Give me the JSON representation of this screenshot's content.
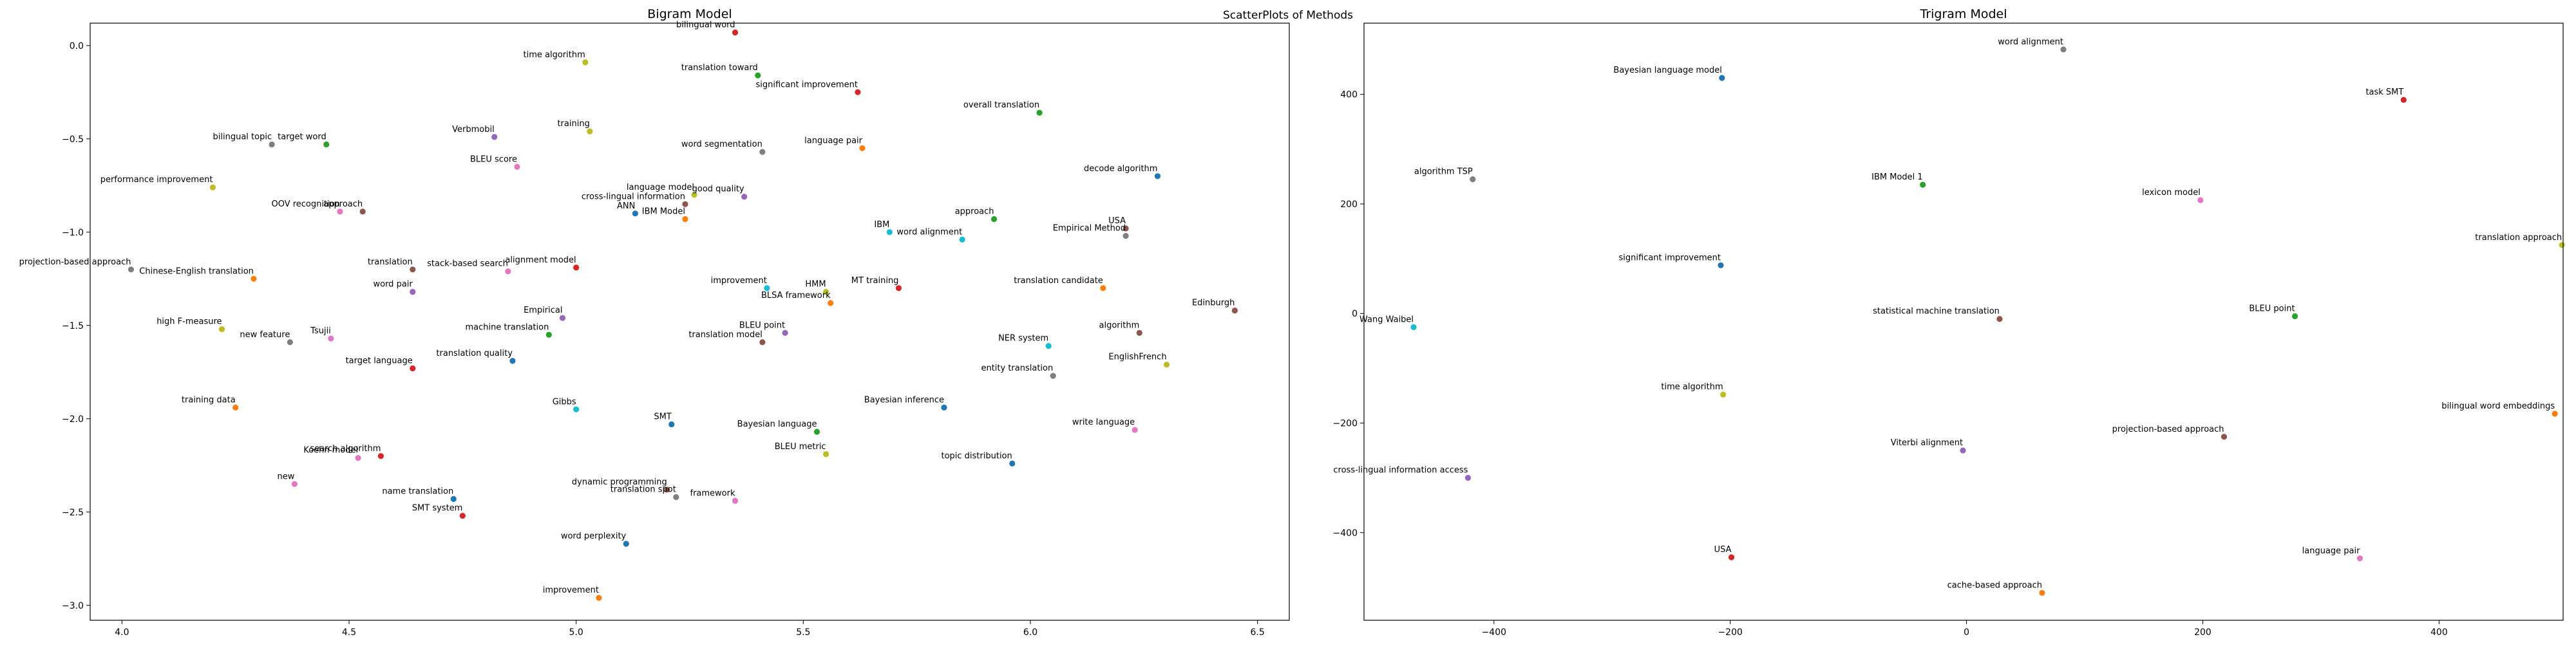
{
  "figure": {
    "suptitle": "ScatterPlots of Methods"
  },
  "chart_data": [
    {
      "type": "scatter",
      "title": "Bigram Model",
      "xlim": [
        3.93,
        6.57
      ],
      "ylim": [
        -3.08,
        0.12
      ],
      "xticks": [
        4.0,
        4.5,
        5.0,
        5.5,
        6.0,
        6.5
      ],
      "yticks": [
        0.0,
        -0.5,
        -1.0,
        -1.5,
        -2.0,
        -2.5,
        -3.0
      ],
      "xtick_labels": [
        "4.0",
        "4.5",
        "5.0",
        "5.5",
        "6.0",
        "6.5"
      ],
      "ytick_labels": [
        "0.0",
        "−0.5",
        "−1.0",
        "−1.5",
        "−2.0",
        "−2.5",
        "−3.0"
      ],
      "grid": false,
      "points": [
        {
          "label": "bilingual word",
          "x": 5.35,
          "y": 0.07,
          "color": "#d62728"
        },
        {
          "label": "time algorithm",
          "x": 5.02,
          "y": -0.09,
          "color": "#bcbd22"
        },
        {
          "label": "translation toward",
          "x": 5.4,
          "y": -0.16,
          "color": "#2ca02c"
        },
        {
          "label": "significant improvement",
          "x": 5.62,
          "y": -0.25,
          "color": "#d62728"
        },
        {
          "label": "overall translation",
          "x": 6.02,
          "y": -0.36,
          "color": "#2ca02c"
        },
        {
          "label": "training",
          "x": 5.03,
          "y": -0.46,
          "color": "#bcbd22"
        },
        {
          "label": "Verbmobil",
          "x": 4.82,
          "y": -0.49,
          "color": "#9467bd"
        },
        {
          "label": "bilingual topic",
          "x": 4.33,
          "y": -0.53,
          "color": "#7f7f7f"
        },
        {
          "label": "target word",
          "x": 4.45,
          "y": -0.53,
          "color": "#2ca02c"
        },
        {
          "label": "word segmentation",
          "x": 5.41,
          "y": -0.57,
          "color": "#7f7f7f"
        },
        {
          "label": "language pair",
          "x": 5.63,
          "y": -0.55,
          "color": "#ff7f0e"
        },
        {
          "label": "BLEU score",
          "x": 4.87,
          "y": -0.65,
          "color": "#e377c2"
        },
        {
          "label": "decode algorithm",
          "x": 6.28,
          "y": -0.7,
          "color": "#1f77b4"
        },
        {
          "label": "performance improvement",
          "x": 4.2,
          "y": -0.76,
          "color": "#bcbd22"
        },
        {
          "label": "language model",
          "x": 5.26,
          "y": -0.8,
          "color": "#bcbd22"
        },
        {
          "label": "good quality",
          "x": 5.37,
          "y": -0.81,
          "color": "#9467bd"
        },
        {
          "label": "cross-lingual information",
          "x": 5.24,
          "y": -0.85,
          "color": "#8c564b"
        },
        {
          "label": "OOV recognition",
          "x": 4.48,
          "y": -0.89,
          "color": "#e377c2"
        },
        {
          "label": "approach",
          "x": 4.53,
          "y": -0.89,
          "color": "#8c564b"
        },
        {
          "label": "ANN",
          "x": 5.13,
          "y": -0.9,
          "color": "#1f77b4"
        },
        {
          "label": "IBM Model",
          "x": 5.24,
          "y": -0.93,
          "color": "#ff7f0e"
        },
        {
          "label": "approach",
          "x": 5.92,
          "y": -0.93,
          "color": "#2ca02c"
        },
        {
          "label": "USA",
          "x": 6.21,
          "y": -0.98,
          "color": "#8c564b"
        },
        {
          "label": "IBM",
          "x": 5.69,
          "y": -1.0,
          "color": "#17becf"
        },
        {
          "label": "word alignment",
          "x": 5.85,
          "y": -1.04,
          "color": "#17becf"
        },
        {
          "label": "Empirical Method",
          "x": 6.21,
          "y": -1.02,
          "color": "#7f7f7f"
        },
        {
          "label": "projection-based approach",
          "x": 4.02,
          "y": -1.2,
          "color": "#7f7f7f"
        },
        {
          "label": "translation",
          "x": 4.64,
          "y": -1.2,
          "color": "#8c564b"
        },
        {
          "label": "stack-based search",
          "x": 4.85,
          "y": -1.21,
          "color": "#e377c2"
        },
        {
          "label": "alignment model",
          "x": 5.0,
          "y": -1.19,
          "color": "#d62728"
        },
        {
          "label": "Chinese-English translation",
          "x": 4.29,
          "y": -1.25,
          "color": "#ff7f0e"
        },
        {
          "label": "word pair",
          "x": 4.64,
          "y": -1.32,
          "color": "#9467bd"
        },
        {
          "label": "improvement",
          "x": 5.42,
          "y": -1.3,
          "color": "#17becf"
        },
        {
          "label": "MT training",
          "x": 5.71,
          "y": -1.3,
          "color": "#d62728"
        },
        {
          "label": "translation candidate",
          "x": 6.16,
          "y": -1.3,
          "color": "#ff7f0e"
        },
        {
          "label": "HMM",
          "x": 5.55,
          "y": -1.32,
          "color": "#bcbd22"
        },
        {
          "label": "BLSA framework",
          "x": 5.56,
          "y": -1.38,
          "color": "#ff7f0e"
        },
        {
          "label": "Edinburgh",
          "x": 6.45,
          "y": -1.42,
          "color": "#8c564b"
        },
        {
          "label": "Empirical",
          "x": 4.97,
          "y": -1.46,
          "color": "#9467bd"
        },
        {
          "label": "high F-measure",
          "x": 4.22,
          "y": -1.52,
          "color": "#bcbd22"
        },
        {
          "label": "machine translation",
          "x": 4.94,
          "y": -1.55,
          "color": "#2ca02c"
        },
        {
          "label": "BLEU point",
          "x": 5.46,
          "y": -1.54,
          "color": "#9467bd"
        },
        {
          "label": "algorithm",
          "x": 6.24,
          "y": -1.54,
          "color": "#8c564b"
        },
        {
          "label": "Tsujii",
          "x": 4.46,
          "y": -1.57,
          "color": "#e377c2"
        },
        {
          "label": "new feature",
          "x": 4.37,
          "y": -1.59,
          "color": "#7f7f7f"
        },
        {
          "label": "translation model",
          "x": 5.41,
          "y": -1.59,
          "color": "#8c564b"
        },
        {
          "label": "NER system",
          "x": 6.04,
          "y": -1.61,
          "color": "#17becf"
        },
        {
          "label": "EnglishFrench",
          "x": 6.3,
          "y": -1.71,
          "color": "#bcbd22"
        },
        {
          "label": "target language",
          "x": 4.64,
          "y": -1.73,
          "color": "#d62728"
        },
        {
          "label": "translation quality",
          "x": 4.86,
          "y": -1.69,
          "color": "#1f77b4"
        },
        {
          "label": "entity translation",
          "x": 6.05,
          "y": -1.77,
          "color": "#7f7f7f"
        },
        {
          "label": "training data",
          "x": 4.25,
          "y": -1.94,
          "color": "#ff7f0e"
        },
        {
          "label": "Gibbs",
          "x": 5.0,
          "y": -1.95,
          "color": "#17becf"
        },
        {
          "label": "Bayesian inference",
          "x": 5.81,
          "y": -1.94,
          "color": "#1f77b4"
        },
        {
          "label": "SMT",
          "x": 5.21,
          "y": -2.03,
          "color": "#1f77b4"
        },
        {
          "label": "Bayesian language",
          "x": 5.53,
          "y": -2.07,
          "color": "#2ca02c"
        },
        {
          "label": "write language",
          "x": 6.23,
          "y": -2.06,
          "color": "#e377c2"
        },
        {
          "label": "BLEU metric",
          "x": 5.55,
          "y": -2.19,
          "color": "#bcbd22"
        },
        {
          "label": "search algorithm",
          "x": 4.57,
          "y": -2.2,
          "color": "#d62728"
        },
        {
          "label": "Koehn model",
          "x": 4.52,
          "y": -2.21,
          "color": "#e377c2"
        },
        {
          "label": "topic distribution",
          "x": 5.96,
          "y": -2.24,
          "color": "#1f77b4"
        },
        {
          "label": "new",
          "x": 4.38,
          "y": -2.35,
          "color": "#e377c2"
        },
        {
          "label": "dynamic programming",
          "x": 5.2,
          "y": -2.38,
          "color": "#8c564b"
        },
        {
          "label": "translation spot",
          "x": 5.22,
          "y": -2.42,
          "color": "#7f7f7f"
        },
        {
          "label": "framework",
          "x": 5.35,
          "y": -2.44,
          "color": "#e377c2"
        },
        {
          "label": "name translation",
          "x": 4.73,
          "y": -2.43,
          "color": "#1f77b4"
        },
        {
          "label": "SMT system",
          "x": 4.75,
          "y": -2.52,
          "color": "#d62728"
        },
        {
          "label": "word perplexity",
          "x": 5.11,
          "y": -2.67,
          "color": "#1f77b4"
        },
        {
          "label": "improvement",
          "x": 5.05,
          "y": -2.96,
          "color": "#ff7f0e"
        }
      ]
    },
    {
      "type": "scatter",
      "title": "Trigram Model",
      "xlim": [
        -510,
        505
      ],
      "ylim": [
        -560,
        530
      ],
      "xticks": [
        -400,
        -200,
        0,
        200,
        400
      ],
      "yticks": [
        400,
        200,
        0,
        -200,
        -400
      ],
      "xtick_labels": [
        "−400",
        "−200",
        "0",
        "200",
        "400"
      ],
      "ytick_labels": [
        "400",
        "200",
        "0",
        "−200",
        "−400"
      ],
      "grid": false,
      "points": [
        {
          "label": "word alignment",
          "x": 82,
          "y": 482,
          "color": "#7f7f7f"
        },
        {
          "label": "Bayesian language model",
          "x": -207,
          "y": 430,
          "color": "#1f77b4"
        },
        {
          "label": "task SMT",
          "x": 370,
          "y": 390,
          "color": "#d62728"
        },
        {
          "label": "algorithm TSP",
          "x": -418,
          "y": 245,
          "color": "#7f7f7f"
        },
        {
          "label": "IBM Model 1",
          "x": -37,
          "y": 235,
          "color": "#2ca02c"
        },
        {
          "label": "lexicon model",
          "x": 198,
          "y": 207,
          "color": "#e377c2"
        },
        {
          "label": "translation approach",
          "x": 504,
          "y": 125,
          "color": "#bcbd22"
        },
        {
          "label": "significant improvement",
          "x": -208,
          "y": 88,
          "color": "#1f77b4"
        },
        {
          "label": "Wang Waibel",
          "x": -468,
          "y": -25,
          "color": "#17becf"
        },
        {
          "label": "statistical machine translation",
          "x": 28,
          "y": -10,
          "color": "#8c564b"
        },
        {
          "label": "BLEU point",
          "x": 278,
          "y": -5,
          "color": "#2ca02c"
        },
        {
          "label": "time algorithm",
          "x": -206,
          "y": -148,
          "color": "#bcbd22"
        },
        {
          "label": "bilingual word embeddings",
          "x": 498,
          "y": -183,
          "color": "#ff7f0e"
        },
        {
          "label": "projection-based approach",
          "x": 218,
          "y": -225,
          "color": "#8c564b"
        },
        {
          "label": "Viterbi alignment",
          "x": -3,
          "y": -250,
          "color": "#9467bd"
        },
        {
          "label": "cross-lingual information access",
          "x": -422,
          "y": -300,
          "color": "#9467bd"
        },
        {
          "label": "USA",
          "x": -199,
          "y": -445,
          "color": "#d62728"
        },
        {
          "label": "language pair",
          "x": 333,
          "y": -447,
          "color": "#e377c2"
        },
        {
          "label": "cache-based approach",
          "x": 64,
          "y": -510,
          "color": "#ff7f0e"
        }
      ]
    }
  ]
}
